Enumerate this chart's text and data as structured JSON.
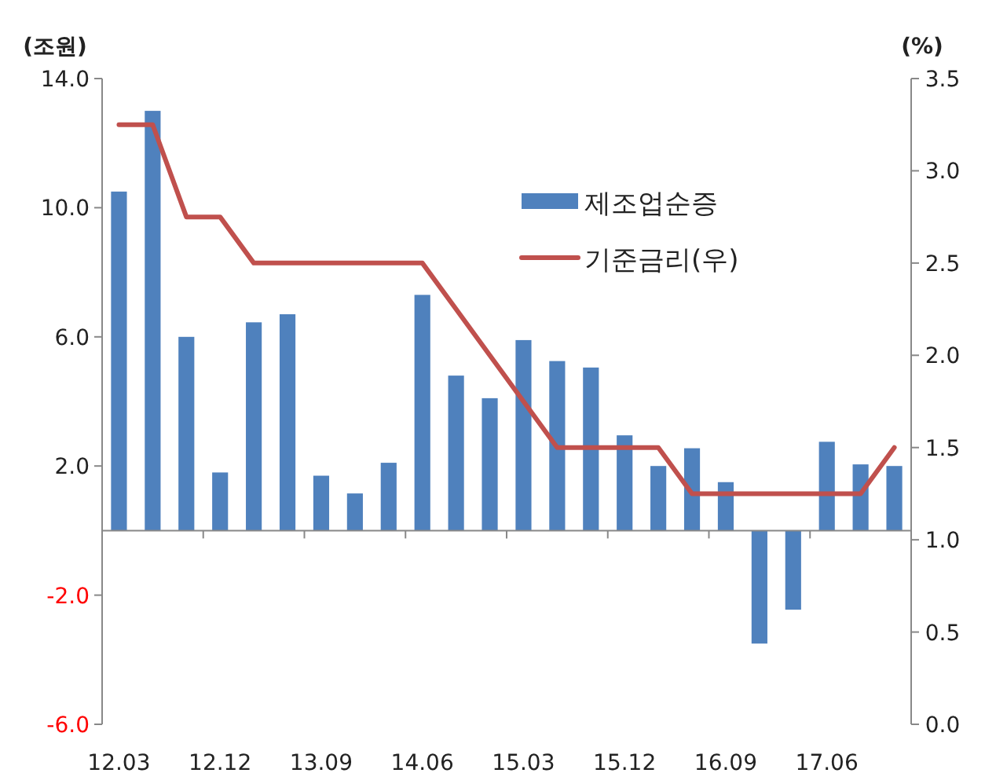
{
  "chart_data": {
    "type": "bar",
    "ylabel": "(조원)",
    "y2label": "(%)",
    "categories": [
      "12.03",
      null,
      null,
      "12.12",
      null,
      null,
      "13.09",
      null,
      null,
      "14.06",
      null,
      null,
      "15.03",
      null,
      null,
      "15.12",
      null,
      null,
      "16.09",
      null,
      null,
      "17.06",
      null,
      null
    ],
    "series": [
      {
        "name": "제조업순증",
        "color": "#4f81bd",
        "values": [
          10.5,
          13.0,
          6.0,
          1.8,
          6.45,
          6.7,
          1.7,
          1.15,
          2.1,
          7.3,
          4.8,
          4.1,
          5.9,
          5.25,
          5.05,
          2.95,
          2.0,
          2.55,
          1.5,
          -3.5,
          -2.45,
          2.75,
          2.05,
          2.0
        ]
      },
      {
        "name": "기준금리(우)",
        "type": "line",
        "axis": "y2",
        "color": "#c0504d",
        "values": [
          3.25,
          3.25,
          2.75,
          2.75,
          2.5,
          2.5,
          2.5,
          2.5,
          2.5,
          2.5,
          2.25,
          2.0,
          1.75,
          1.5,
          1.5,
          1.5,
          1.5,
          1.25,
          1.25,
          1.25,
          1.25,
          1.25,
          1.25,
          1.5
        ]
      }
    ],
    "ylim": [
      -6,
      14
    ],
    "yticks": [
      {
        "value": -6,
        "label": "-6.0"
      },
      {
        "value": -2,
        "label": "-2.0"
      },
      {
        "value": 2,
        "label": "2.0"
      },
      {
        "value": 6,
        "label": "6.0"
      },
      {
        "value": 10,
        "label": "10.0"
      },
      {
        "value": 14,
        "label": "14.0"
      }
    ],
    "y2lim": [
      0,
      3.5
    ],
    "y2ticks": [
      {
        "value": 0,
        "label": "0.0"
      },
      {
        "value": 0.5,
        "label": "0.5"
      },
      {
        "value": 1,
        "label": "1.0"
      },
      {
        "value": 1.5,
        "label": "1.5"
      },
      {
        "value": 2,
        "label": "2.0"
      },
      {
        "value": 2.5,
        "label": "2.5"
      },
      {
        "value": 3,
        "label": "3.0"
      },
      {
        "value": 3.5,
        "label": "3.5"
      }
    ],
    "grid": false,
    "legend": "top right",
    "marker": "none",
    "line_style": "solid"
  }
}
